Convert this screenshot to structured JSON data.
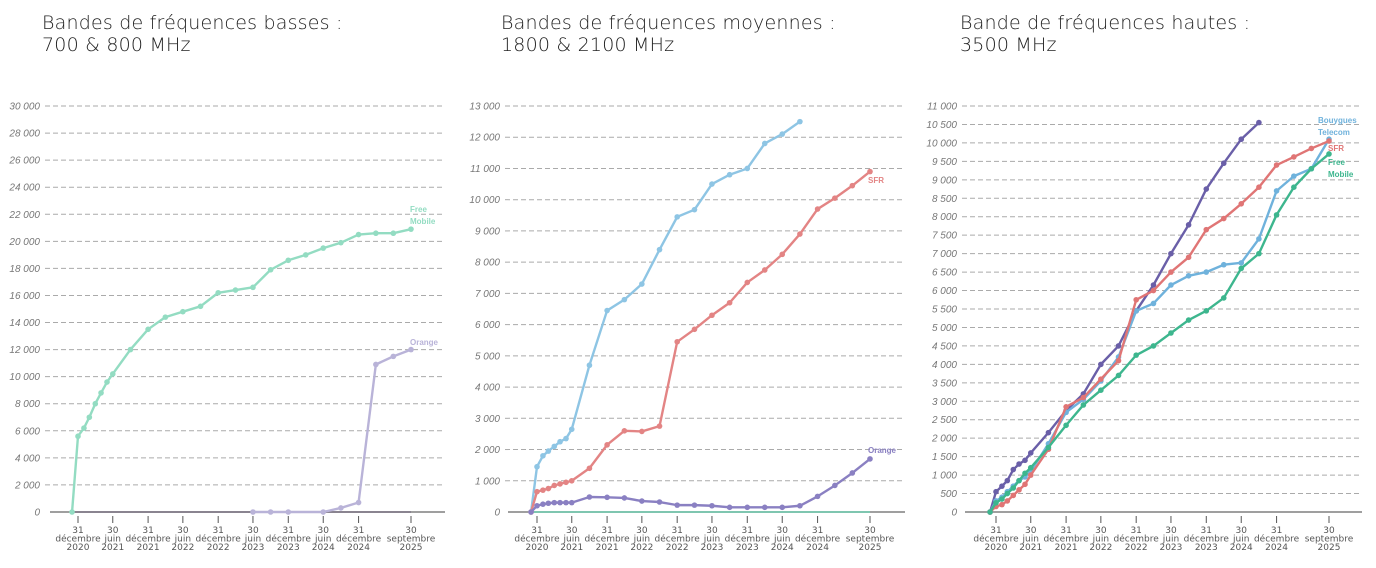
{
  "chart_data": [
    {
      "type": "line",
      "title": "Bandes de fréquences basses :\n700 & 800 MHz",
      "ylim": [
        0,
        30000
      ],
      "ytick_step": 2000,
      "grid": true,
      "x_ticks": [
        {
          "date": "2020-12-31",
          "label": [
            "31",
            "décembre",
            "2020"
          ]
        },
        {
          "date": "2021-06-30",
          "label": [
            "30",
            "juin",
            "2021"
          ]
        },
        {
          "date": "2021-12-31",
          "label": [
            "31",
            "décembre",
            "2021"
          ]
        },
        {
          "date": "2022-06-30",
          "label": [
            "30",
            "juin",
            "2022"
          ]
        },
        {
          "date": "2022-12-31",
          "label": [
            "31",
            "décembre",
            "2022"
          ]
        },
        {
          "date": "2023-06-30",
          "label": [
            "30",
            "juin",
            "2023"
          ]
        },
        {
          "date": "2023-12-31",
          "label": [
            "31",
            "décembre",
            "2023"
          ]
        },
        {
          "date": "2024-06-30",
          "label": [
            "30",
            "juin",
            "2024"
          ]
        },
        {
          "date": "2024-12-31",
          "label": [
            "31",
            "décembre",
            "2024"
          ]
        },
        {
          "date": "2025-09-30",
          "label": [
            "30",
            "septembre",
            "2025"
          ]
        }
      ],
      "x": [
        "2020-11-30",
        "2020-12-31",
        "2021-01-31",
        "2021-02-28",
        "2021-03-31",
        "2021-04-30",
        "2021-05-31",
        "2021-06-30",
        "2021-09-30",
        "2021-12-31",
        "2022-03-31",
        "2022-06-30",
        "2022-09-30",
        "2022-12-31",
        "2023-03-31",
        "2023-06-30",
        "2023-09-30",
        "2023-12-31",
        "2024-03-31",
        "2024-06-30",
        "2024-09-30",
        "2024-12-31",
        "2025-03-31",
        "2025-06-30",
        "2025-09-30"
      ],
      "series": [
        {
          "color": "#8a8490",
          "markers": false,
          "values": [
            0,
            0,
            0,
            0,
            0,
            0,
            0,
            0,
            0,
            0,
            0,
            0,
            0,
            0,
            0,
            0,
            0,
            0,
            0,
            0,
            0,
            0,
            0,
            0,
            0
          ]
        },
        {
          "name": "Free Mobile",
          "color": "#93dcc2",
          "markers": true,
          "values": [
            0,
            5600,
            6200,
            7000,
            8000,
            8800,
            9600,
            10200,
            12000,
            13500,
            14400,
            14800,
            15200,
            16200,
            16400,
            16600,
            17900,
            18600,
            19000,
            19500,
            19900,
            20500,
            20600,
            20600,
            20900
          ]
        },
        {
          "name": "Orange",
          "color": "#b9b3d8",
          "markers": true,
          "values": [
            null,
            null,
            null,
            null,
            null,
            null,
            null,
            null,
            null,
            null,
            null,
            null,
            null,
            null,
            null,
            0,
            0,
            0,
            null,
            0,
            300,
            700,
            10900,
            11500,
            12000
          ]
        }
      ]
    },
    {
      "type": "line",
      "title": "Bandes de fréquences moyennes :\n1800 & 2100 MHz",
      "ylim": [
        0,
        13000
      ],
      "ytick_step": 1000,
      "grid": true,
      "x_ticks": [
        {
          "date": "2020-12-31",
          "label": [
            "31",
            "décembre",
            "2020"
          ]
        },
        {
          "date": "2021-06-30",
          "label": [
            "30",
            "juin",
            "2021"
          ]
        },
        {
          "date": "2021-12-31",
          "label": [
            "31",
            "décembre",
            "2021"
          ]
        },
        {
          "date": "2022-06-30",
          "label": [
            "30",
            "juin",
            "2022"
          ]
        },
        {
          "date": "2022-12-31",
          "label": [
            "31",
            "décembre",
            "2022"
          ]
        },
        {
          "date": "2023-06-30",
          "label": [
            "30",
            "juin",
            "2023"
          ]
        },
        {
          "date": "2023-12-31",
          "label": [
            "31",
            "décembre",
            "2023"
          ]
        },
        {
          "date": "2024-06-30",
          "label": [
            "30",
            "juin",
            "2024"
          ]
        },
        {
          "date": "2024-12-31",
          "label": [
            "31",
            "décembre",
            "2024"
          ]
        },
        {
          "date": "2025-09-30",
          "label": [
            "30",
            "septembre",
            "2025"
          ]
        }
      ],
      "x": [
        "2020-11-30",
        "2020-12-31",
        "2021-01-31",
        "2021-02-28",
        "2021-03-31",
        "2021-04-30",
        "2021-05-31",
        "2021-06-30",
        "2021-09-30",
        "2021-12-31",
        "2022-03-31",
        "2022-06-30",
        "2022-09-30",
        "2022-12-31",
        "2023-03-31",
        "2023-06-30",
        "2023-09-30",
        "2023-12-31",
        "2024-03-31",
        "2024-06-30",
        "2024-09-30",
        "2024-12-31",
        "2025-03-31",
        "2025-06-30",
        "2025-09-30"
      ],
      "series": [
        {
          "color": "#7fc6b0",
          "markers": false,
          "values": [
            0,
            0,
            0,
            0,
            0,
            0,
            0,
            0,
            0,
            0,
            0,
            0,
            0,
            0,
            0,
            0,
            0,
            0,
            0,
            0,
            0,
            0,
            0,
            0,
            0
          ]
        },
        {
          "color": "#8ec5e4",
          "markers": true,
          "values": [
            0,
            1450,
            1800,
            1950,
            2100,
            2250,
            2350,
            2650,
            4700,
            6450,
            6800,
            7300,
            8400,
            9450,
            9680,
            10500,
            10800,
            11000,
            11800,
            12100,
            12500,
            null,
            null,
            null,
            null
          ]
        },
        {
          "name": "SFR",
          "color": "#e38484",
          "markers": true,
          "values": [
            0,
            650,
            700,
            750,
            850,
            900,
            950,
            1000,
            1400,
            2150,
            2600,
            2580,
            2750,
            5450,
            5850,
            6300,
            6700,
            7350,
            7750,
            8250,
            8900,
            9700,
            10050,
            10450,
            10900
          ]
        },
        {
          "name": "Orange",
          "color": "#8a80c2",
          "markers": true,
          "values": [
            0,
            200,
            250,
            280,
            300,
            300,
            300,
            300,
            480,
            470,
            450,
            350,
            320,
            220,
            220,
            200,
            150,
            150,
            150,
            150,
            200,
            500,
            850,
            1250,
            1700
          ]
        }
      ]
    },
    {
      "type": "line",
      "title": "Bande de fréquences hautes :\n3500 MHz",
      "ylim": [
        0,
        11000
      ],
      "ytick_step": 500,
      "grid": true,
      "x_ticks": [
        {
          "date": "2020-12-31",
          "label": [
            "31",
            "décembre",
            "2020"
          ]
        },
        {
          "date": "2021-06-30",
          "label": [
            "30",
            "juin",
            "2021"
          ]
        },
        {
          "date": "2021-12-31",
          "label": [
            "31",
            "décembre",
            "2021"
          ]
        },
        {
          "date": "2022-06-30",
          "label": [
            "30",
            "juin",
            "2022"
          ]
        },
        {
          "date": "2022-12-31",
          "label": [
            "31",
            "décembre",
            "2022"
          ]
        },
        {
          "date": "2023-06-30",
          "label": [
            "30",
            "juin",
            "2023"
          ]
        },
        {
          "date": "2023-12-31",
          "label": [
            "31",
            "décembre",
            "2023"
          ]
        },
        {
          "date": "2024-06-30",
          "label": [
            "30",
            "juin",
            "2024"
          ]
        },
        {
          "date": "2024-12-31",
          "label": [
            "31",
            "décembre",
            "2024"
          ]
        },
        {
          "date": "2025-09-30",
          "label": [
            "30",
            "septembre",
            "2025"
          ]
        }
      ],
      "x": [
        "2020-11-30",
        "2020-12-31",
        "2021-01-31",
        "2021-02-28",
        "2021-03-31",
        "2021-04-30",
        "2021-05-31",
        "2021-06-30",
        "2021-09-30",
        "2021-12-31",
        "2022-03-31",
        "2022-06-30",
        "2022-09-30",
        "2022-12-31",
        "2023-03-31",
        "2023-06-30",
        "2023-09-30",
        "2023-12-31",
        "2024-03-31",
        "2024-06-30",
        "2024-09-30",
        "2024-12-31",
        "2025-03-31",
        "2025-06-30",
        "2025-09-30"
      ],
      "series": [
        {
          "color": "#6a5fa8",
          "markers": true,
          "values": [
            0,
            550,
            700,
            850,
            1150,
            1300,
            1400,
            1600,
            2150,
            2750,
            3200,
            4000,
            4500,
            5450,
            6150,
            7000,
            7780,
            8750,
            9450,
            10100,
            10550,
            null,
            null,
            null,
            null
          ]
        },
        {
          "name": "Bouygues Telecom",
          "color": "#6fb2dc",
          "markers": true,
          "values": [
            0,
            300,
            400,
            550,
            700,
            850,
            950,
            1100,
            1850,
            2700,
            3050,
            3550,
            4200,
            5450,
            5650,
            6150,
            6400,
            6500,
            6700,
            6750,
            7400,
            8700,
            9100,
            9300,
            10100
          ]
        },
        {
          "name": "SFR",
          "color": "#e07575",
          "markers": true,
          "values": [
            0,
            150,
            200,
            300,
            450,
            600,
            750,
            1000,
            1700,
            2850,
            3100,
            3600,
            4100,
            5750,
            6000,
            6500,
            6900,
            7650,
            7950,
            8350,
            8800,
            9400,
            9620,
            9850,
            10050
          ]
        },
        {
          "name": "Free Mobile",
          "color": "#3db68e",
          "markers": true,
          "values": [
            0,
            250,
            350,
            500,
            650,
            850,
            1050,
            1200,
            1750,
            2350,
            2900,
            3300,
            3700,
            4250,
            4500,
            4850,
            5200,
            5450,
            5800,
            6600,
            7000,
            8050,
            8800,
            9300,
            9700
          ]
        }
      ]
    }
  ]
}
